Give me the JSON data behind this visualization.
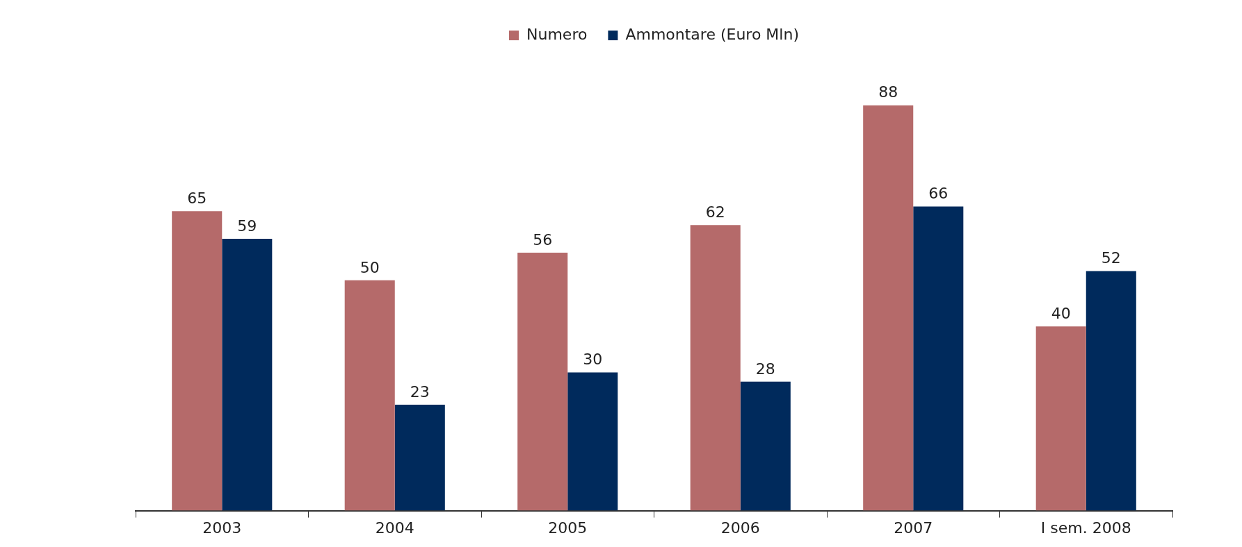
{
  "chart_data": {
    "type": "bar",
    "categories": [
      "2003",
      "2004",
      "2005",
      "2006",
      "2007",
      "I sem. 2008"
    ],
    "series": [
      {
        "name": "Numero",
        "color": "#b56a6a",
        "values": [
          65,
          50,
          56,
          62,
          88,
          40
        ]
      },
      {
        "name": "Ammontare (Euro Mln)",
        "color": "#002a5c",
        "values": [
          59,
          23,
          30,
          28,
          66,
          52
        ]
      }
    ],
    "data_labels": true,
    "legend": "top",
    "grid": false
  }
}
